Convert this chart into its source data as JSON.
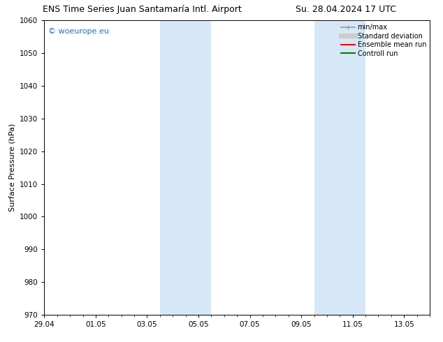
{
  "title_left": "ENS Time Series Juan Santamaría Intl. Airport",
  "title_right": "Su. 28.04.2024 17 UTC",
  "ylabel": "Surface Pressure (hPa)",
  "ylim": [
    970,
    1060
  ],
  "yticks": [
    970,
    980,
    990,
    1000,
    1010,
    1020,
    1030,
    1040,
    1050,
    1060
  ],
  "xtick_labels": [
    "29.04",
    "01.05",
    "03.05",
    "05.05",
    "07.05",
    "09.05",
    "11.05",
    "13.05"
  ],
  "xtick_positions": [
    0,
    2,
    4,
    6,
    8,
    10,
    12,
    14
  ],
  "shaded_regions": [
    {
      "start": 4.5,
      "end": 6.5,
      "color": "#d6e8f7"
    },
    {
      "start": 10.5,
      "end": 12.5,
      "color": "#d6e8f7"
    }
  ],
  "watermark_text": "© woeurope.eu",
  "watermark_color": "#1a6fc4",
  "legend_items": [
    {
      "label": "min/max",
      "color": "#999999",
      "lw": 1.2
    },
    {
      "label": "Standard deviation",
      "color": "#cccccc",
      "lw": 5
    },
    {
      "label": "Ensemble mean run",
      "color": "#ff0000",
      "lw": 1.5
    },
    {
      "label": "Controll run",
      "color": "#008000",
      "lw": 1.5
    }
  ],
  "bg_color": "#ffffff",
  "plot_bg_color": "#ffffff",
  "title_fontsize": 9,
  "label_fontsize": 8,
  "tick_fontsize": 7.5,
  "watermark_fontsize": 8
}
